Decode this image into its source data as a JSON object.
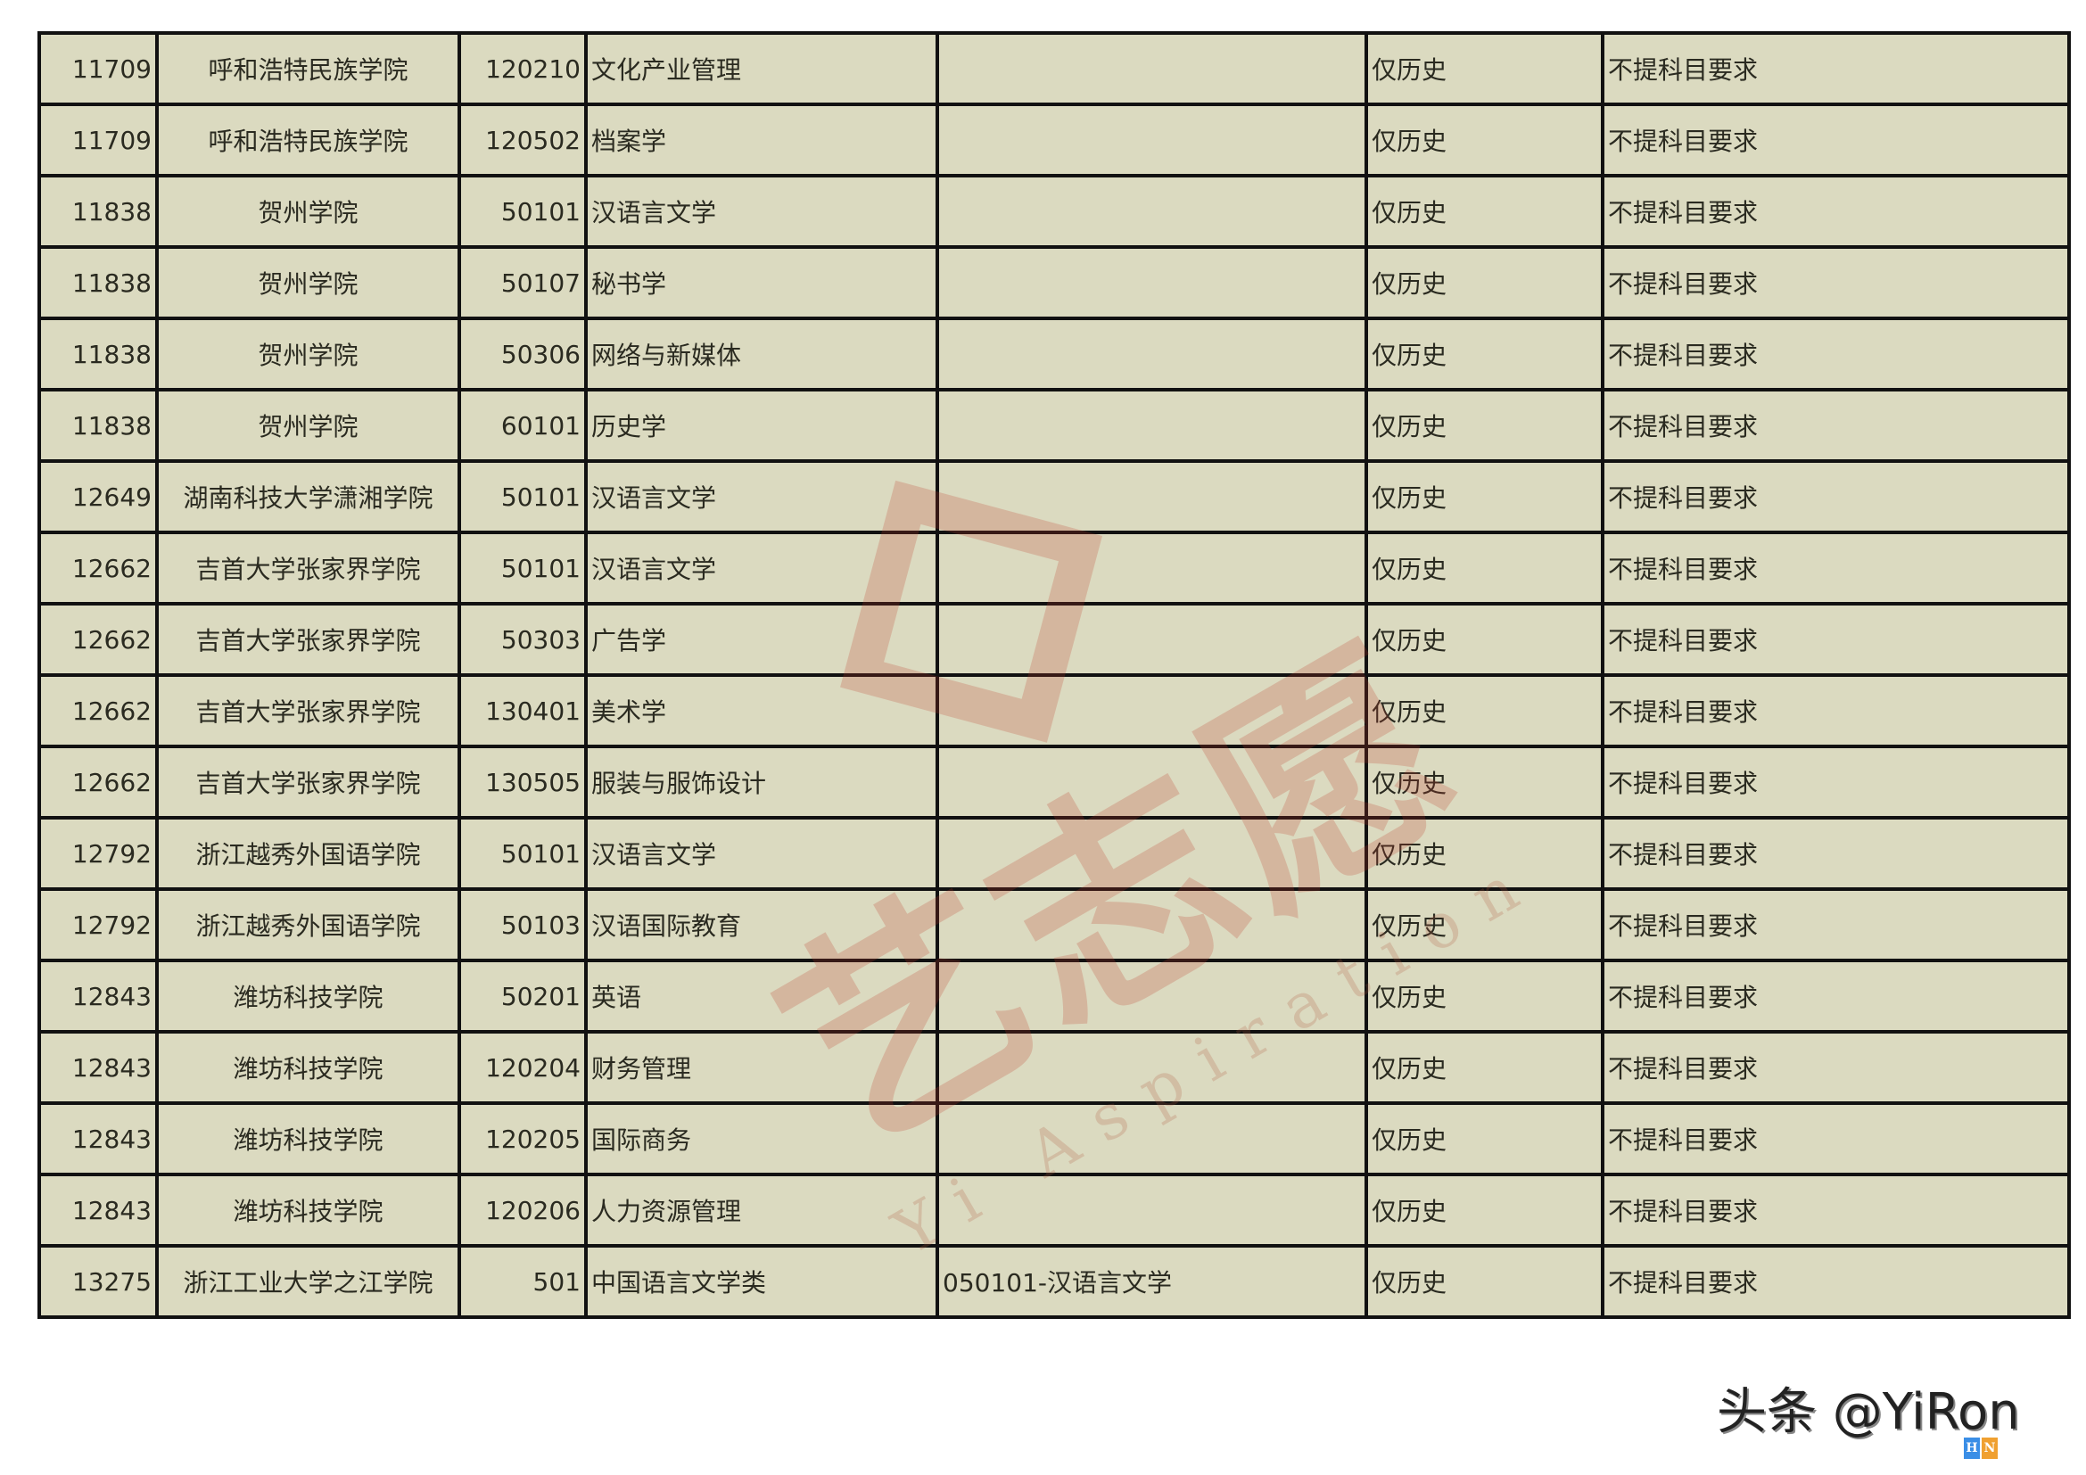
{
  "watermark": {
    "brand": "艺志愿",
    "tagline": "Yi Aspiration"
  },
  "rows": [
    [
      "11709",
      "呼和浩特民族学院",
      "120210",
      "文化产业管理",
      "",
      "仅历史",
      "不提科目要求"
    ],
    [
      "11709",
      "呼和浩特民族学院",
      "120502",
      "档案学",
      "",
      "仅历史",
      "不提科目要求"
    ],
    [
      "11838",
      "贺州学院",
      "50101",
      "汉语言文学",
      "",
      "仅历史",
      "不提科目要求"
    ],
    [
      "11838",
      "贺州学院",
      "50107",
      "秘书学",
      "",
      "仅历史",
      "不提科目要求"
    ],
    [
      "11838",
      "贺州学院",
      "50306",
      "网络与新媒体",
      "",
      "仅历史",
      "不提科目要求"
    ],
    [
      "11838",
      "贺州学院",
      "60101",
      "历史学",
      "",
      "仅历史",
      "不提科目要求"
    ],
    [
      "12649",
      "湖南科技大学潇湘学院",
      "50101",
      "汉语言文学",
      "",
      "仅历史",
      "不提科目要求"
    ],
    [
      "12662",
      "吉首大学张家界学院",
      "50101",
      "汉语言文学",
      "",
      "仅历史",
      "不提科目要求"
    ],
    [
      "12662",
      "吉首大学张家界学院",
      "50303",
      "广告学",
      "",
      "仅历史",
      "不提科目要求"
    ],
    [
      "12662",
      "吉首大学张家界学院",
      "130401",
      "美术学",
      "",
      "仅历史",
      "不提科目要求"
    ],
    [
      "12662",
      "吉首大学张家界学院",
      "130505",
      "服装与服饰设计",
      "",
      "仅历史",
      "不提科目要求"
    ],
    [
      "12792",
      "浙江越秀外国语学院",
      "50101",
      "汉语言文学",
      "",
      "仅历史",
      "不提科目要求"
    ],
    [
      "12792",
      "浙江越秀外国语学院",
      "50103",
      "汉语国际教育",
      "",
      "仅历史",
      "不提科目要求"
    ],
    [
      "12843",
      "潍坊科技学院",
      "50201",
      "英语",
      "",
      "仅历史",
      "不提科目要求"
    ],
    [
      "12843",
      "潍坊科技学院",
      "120204",
      "财务管理",
      "",
      "仅历史",
      "不提科目要求"
    ],
    [
      "12843",
      "潍坊科技学院",
      "120205",
      "国际商务",
      "",
      "仅历史",
      "不提科目要求"
    ],
    [
      "12843",
      "潍坊科技学院",
      "120206",
      "人力资源管理",
      "",
      "仅历史",
      "不提科目要求"
    ],
    [
      "13275",
      "浙江工业大学之江学院",
      "501",
      "中国语言文学类",
      "050101-汉语言文学",
      "仅历史",
      "不提科目要求"
    ]
  ],
  "footer": {
    "credit": "头条 @YiRon",
    "logo_left": "H",
    "logo_right": "N"
  },
  "colors": {
    "cell_bg": "#dbdac0",
    "border": "#111111",
    "logo_blue": "#3a8ee6",
    "logo_orange": "#f0a030"
  }
}
